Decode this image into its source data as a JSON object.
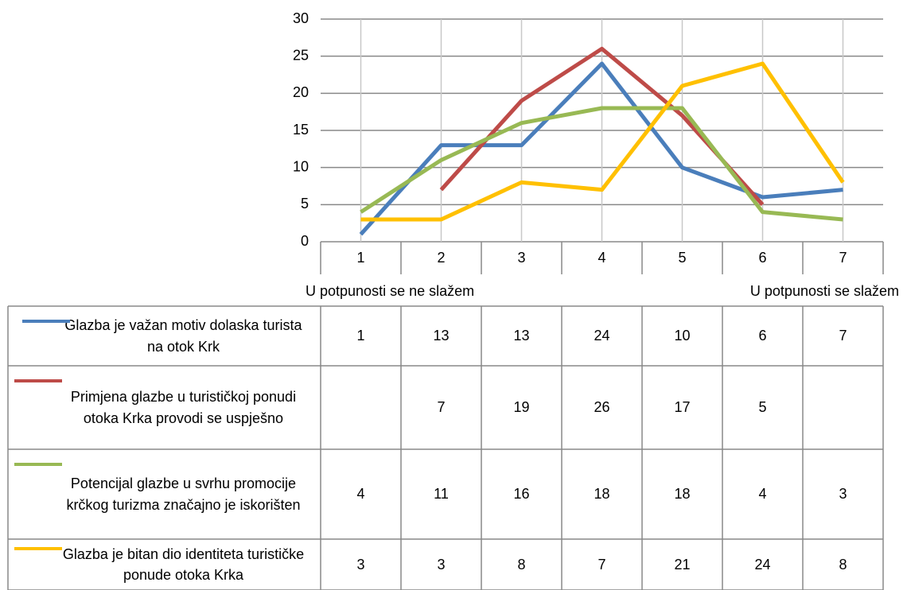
{
  "chart_data": {
    "type": "line",
    "categories": [
      "1",
      "2",
      "3",
      "4",
      "5",
      "6",
      "7"
    ],
    "axis_note_left": "U potpunosti se ne slažem",
    "axis_note_right": "U potpunosti se slažem",
    "series": [
      {
        "name": "Glazba je važan motiv dolaska turista na otok Krk",
        "color": "#4a7ebb",
        "values": [
          1,
          13,
          13,
          24,
          10,
          6,
          7
        ]
      },
      {
        "name": "Primjena glazbe u turističkoj ponudi otoka Krka provodi se uspješno",
        "color": "#be4b48",
        "values": [
          null,
          7,
          19,
          26,
          17,
          5,
          null
        ]
      },
      {
        "name": "Potencijal glazbe u svrhu promocije krčkog turizma značajno je iskorišten",
        "color": "#98b954",
        "values": [
          4,
          11,
          16,
          18,
          18,
          4,
          3
        ]
      },
      {
        "name": "Glazba je bitan dio identiteta turističke ponude otoka Krka",
        "color": "#ffc000",
        "values": [
          3,
          3,
          8,
          7,
          21,
          24,
          8
        ]
      }
    ],
    "ylim": [
      0,
      30
    ],
    "yticks": [
      0,
      5,
      10,
      15,
      20,
      25,
      30
    ],
    "grid": true
  }
}
